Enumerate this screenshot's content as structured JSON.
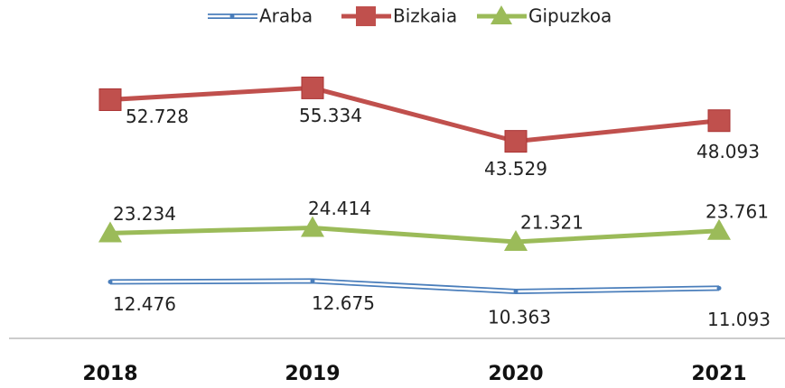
{
  "chart_data": {
    "type": "line",
    "categories": [
      "2018",
      "2019",
      "2020",
      "2021"
    ],
    "ylim": [
      0,
      60000
    ],
    "legend": "top",
    "series": [
      {
        "name": "Araba",
        "color": "#4a7ebb",
        "marker": "line",
        "values": [
          12476,
          12675,
          10363,
          11093
        ],
        "value_labels": [
          "12.476",
          "12.675",
          "10.363",
          "11.093"
        ]
      },
      {
        "name": "Bizkaia",
        "color": "#c0504d",
        "marker": "square",
        "values": [
          52728,
          55334,
          43529,
          48093
        ],
        "value_labels": [
          "52.728",
          "55.334",
          "43.529",
          "48.093"
        ]
      },
      {
        "name": "Gipuzkoa",
        "color": "#9bbb59",
        "marker": "triangle",
        "values": [
          23234,
          24414,
          21321,
          23761
        ],
        "value_labels": [
          "23.234",
          "24.414",
          "21.321",
          "23.761"
        ]
      }
    ]
  }
}
